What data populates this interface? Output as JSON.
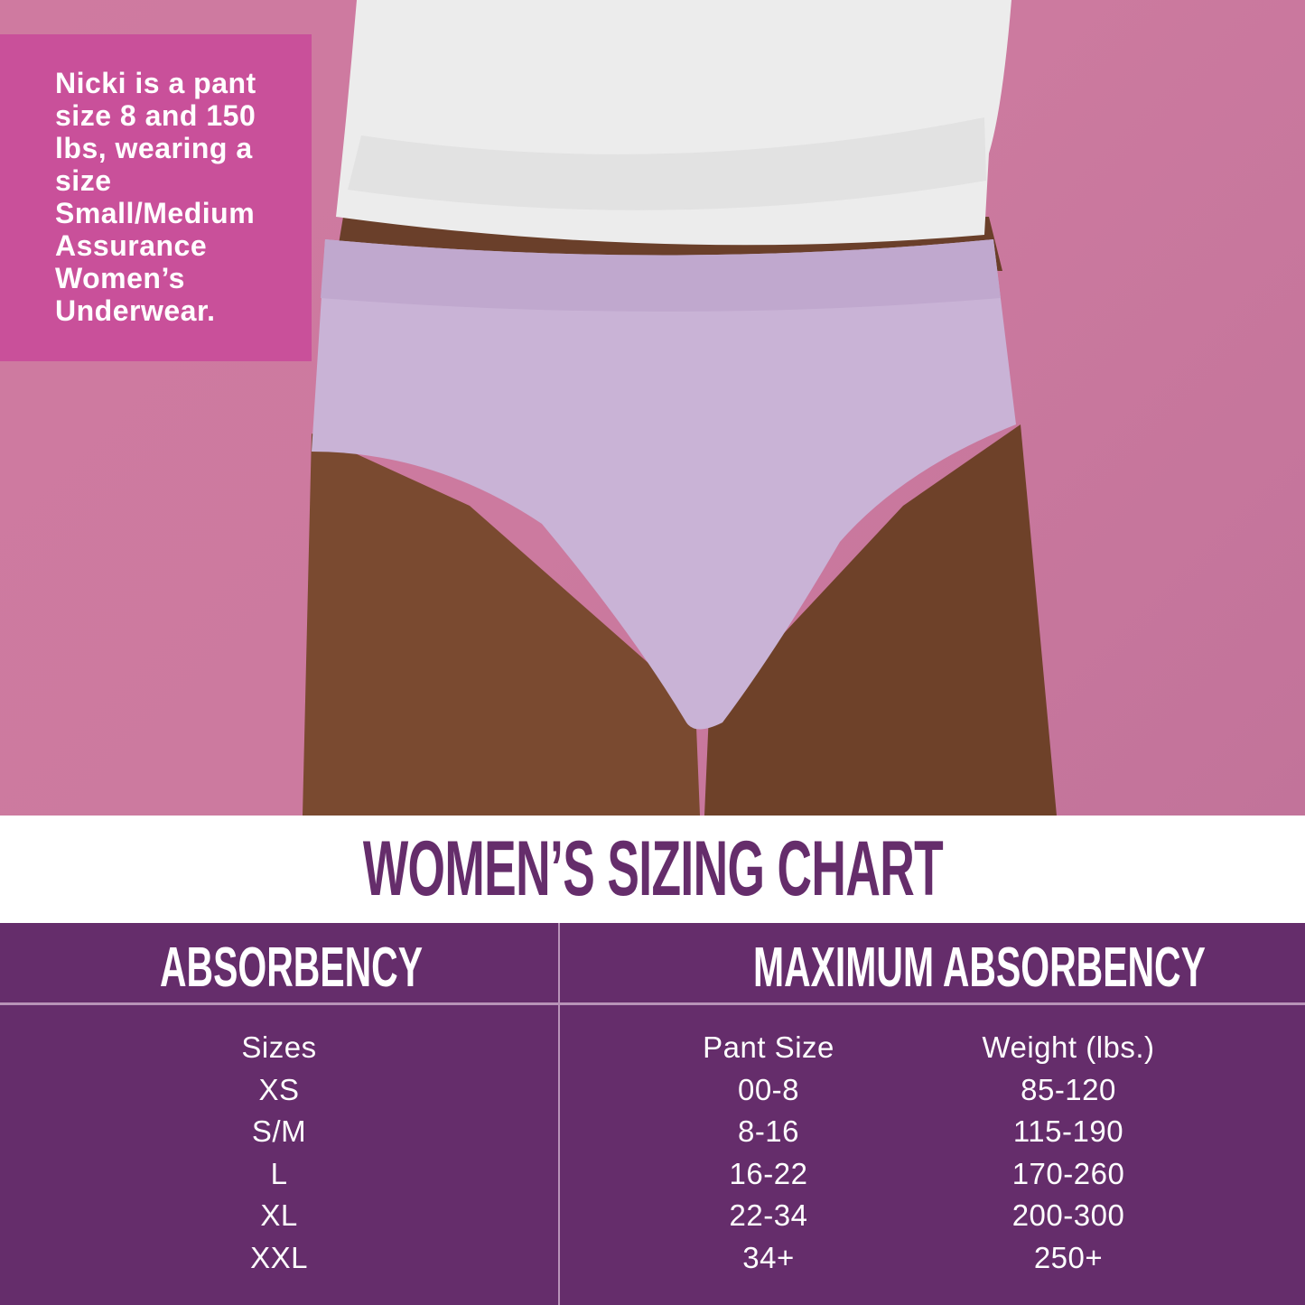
{
  "caption": "Nicki is a pant size 8 and 150 lbs, wearing a size Small/Medium Assurance Women’s Underwear.",
  "title": "WOMEN’S SIZING CHART",
  "colors": {
    "background_pink": "#cf7aa0",
    "caption_box": "#c9509a",
    "purple": "#652d6b",
    "underwear_lavender": "#c9b3d6"
  },
  "table": {
    "absorbency": {
      "header": "ABSORBENCY",
      "column_header": "Sizes",
      "rows": [
        "XS",
        "S/M",
        "L",
        "XL",
        "XXL"
      ]
    },
    "maximum_absorbency": {
      "header": "MAXIMUM ABSORBENCY",
      "pant_size_header": "Pant Size",
      "pant_sizes": [
        "00-8",
        "8-16",
        "16-22",
        "22-34",
        "34+"
      ],
      "weight_header": "Weight (lbs.)",
      "weights": [
        "85-120",
        "115-190",
        "170-260",
        "200-300",
        "250+"
      ]
    }
  }
}
